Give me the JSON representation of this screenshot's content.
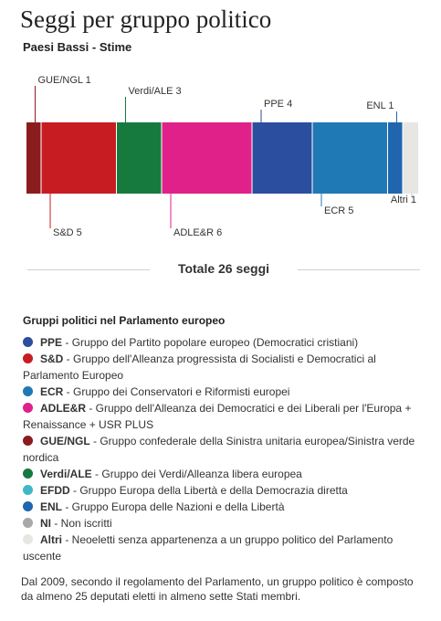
{
  "title": "Seggi per gruppo politico",
  "subtitle": "Paesi Bassi - Stime",
  "total": "Totale 26 seggi",
  "chart_data": {
    "type": "bar",
    "stacked": true,
    "orientation": "horizontal",
    "categories": [
      "GUE/NGL",
      "S&D",
      "Verdi/ALE",
      "ADLE&R",
      "PPE",
      "ECR",
      "ENL",
      "Altri"
    ],
    "values": [
      1,
      5,
      3,
      6,
      4,
      5,
      1,
      1
    ],
    "labels": [
      "GUE/NGL 1",
      "S&D 5",
      "Verdi/ALE 3",
      "ADLE&R 6",
      "PPE 4",
      "ECR 5",
      "ENL 1",
      "Altri 1"
    ],
    "label_side": [
      "top",
      "bottom",
      "top",
      "bottom",
      "top",
      "bottom",
      "top",
      "bottom"
    ],
    "colors": [
      "#8b1c1e",
      "#c81c23",
      "#167a3f",
      "#e0218a",
      "#2b4e9e",
      "#1f79b5",
      "#1f66ae",
      "#e6e6e3"
    ],
    "total": 26
  },
  "legend_title": "Gruppi politici nel Parlamento europeo",
  "legend": [
    {
      "abbr": "PPE",
      "desc": "Gruppo del Partito popolare europeo (Democratici cristiani)",
      "color": "#2b4e9e"
    },
    {
      "abbr": "S&D",
      "desc": "Gruppo dell'Alleanza progressista di Socialisti e Democratici al Parlamento Europeo",
      "color": "#c81c23"
    },
    {
      "abbr": "ECR",
      "desc": "Gruppo dei Conservatori e Riformisti europei",
      "color": "#1f79b5"
    },
    {
      "abbr": "ADLE&R",
      "desc": "Gruppo dell'Alleanza dei Democratici e dei Liberali per l'Europa + Renaissance + USR PLUS",
      "color": "#e0218a"
    },
    {
      "abbr": "GUE/NGL",
      "desc": "Gruppo confederale della Sinistra unitaria europea/Sinistra verde nordica",
      "color": "#8b1c1e"
    },
    {
      "abbr": "Verdi/ALE",
      "desc": "Gruppo dei Verdi/Alleanza libera europea",
      "color": "#167a3f"
    },
    {
      "abbr": "EFDD",
      "desc": "Gruppo Europa della Libertà e della Democrazia diretta",
      "color": "#3fb7c4"
    },
    {
      "abbr": "ENL",
      "desc": "Gruppo Europa delle Nazioni e della Libertà",
      "color": "#1f66ae"
    },
    {
      "abbr": "NI",
      "desc": "Non iscritti",
      "color": "#a8a8a8"
    },
    {
      "abbr": "Altri",
      "desc": "Neoeletti senza appartenenza a un gruppo politico del Parlamento uscente",
      "color": "#e6e6e3"
    }
  ],
  "footnote": "Dal 2009, secondo il regolamento del Parlamento, un gruppo politico è composto da almeno 25 deputati eletti in almeno sette Stati membri."
}
